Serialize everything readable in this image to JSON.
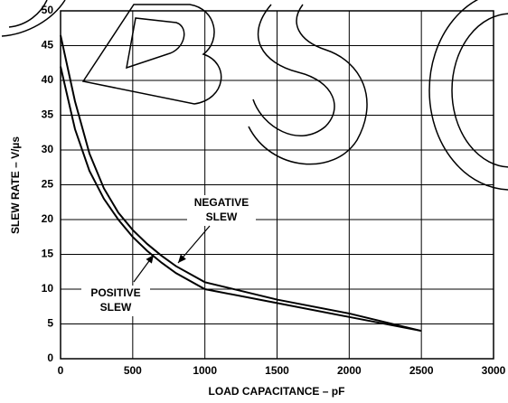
{
  "chart_data": {
    "type": "line",
    "xlabel": "LOAD CAPACITANCE – pF",
    "ylabel": "SLEW RATE – V/µs",
    "x": [
      0,
      100,
      200,
      300,
      400,
      500,
      600,
      700,
      800,
      1000,
      1500,
      2000,
      2500
    ],
    "series": [
      {
        "color": "#000000",
        "values": [
          46.5,
          37,
          29.5,
          24.5,
          21,
          18.5,
          16.5,
          14.8,
          13.3,
          11,
          8.5,
          6.5,
          4
        ]
      },
      {
        "color": "#000000",
        "values": [
          42,
          33,
          27,
          23,
          20,
          17.5,
          15.5,
          13.8,
          12.3,
          10,
          8,
          6,
          4
        ]
      }
    ],
    "annotations": [
      {
        "text": [
          "NEGATIVE",
          "SLEW"
        ]
      },
      {
        "text": [
          "POSITIVE",
          "SLEW"
        ]
      }
    ],
    "xlim": [
      0,
      3000
    ],
    "xticks": [
      0,
      500,
      1000,
      1500,
      2000,
      2500,
      3000
    ],
    "ylim": [
      0,
      50
    ],
    "yticks": [
      0,
      5,
      10,
      15,
      20,
      25,
      30,
      35,
      40,
      45,
      50
    ],
    "grid": true
  }
}
